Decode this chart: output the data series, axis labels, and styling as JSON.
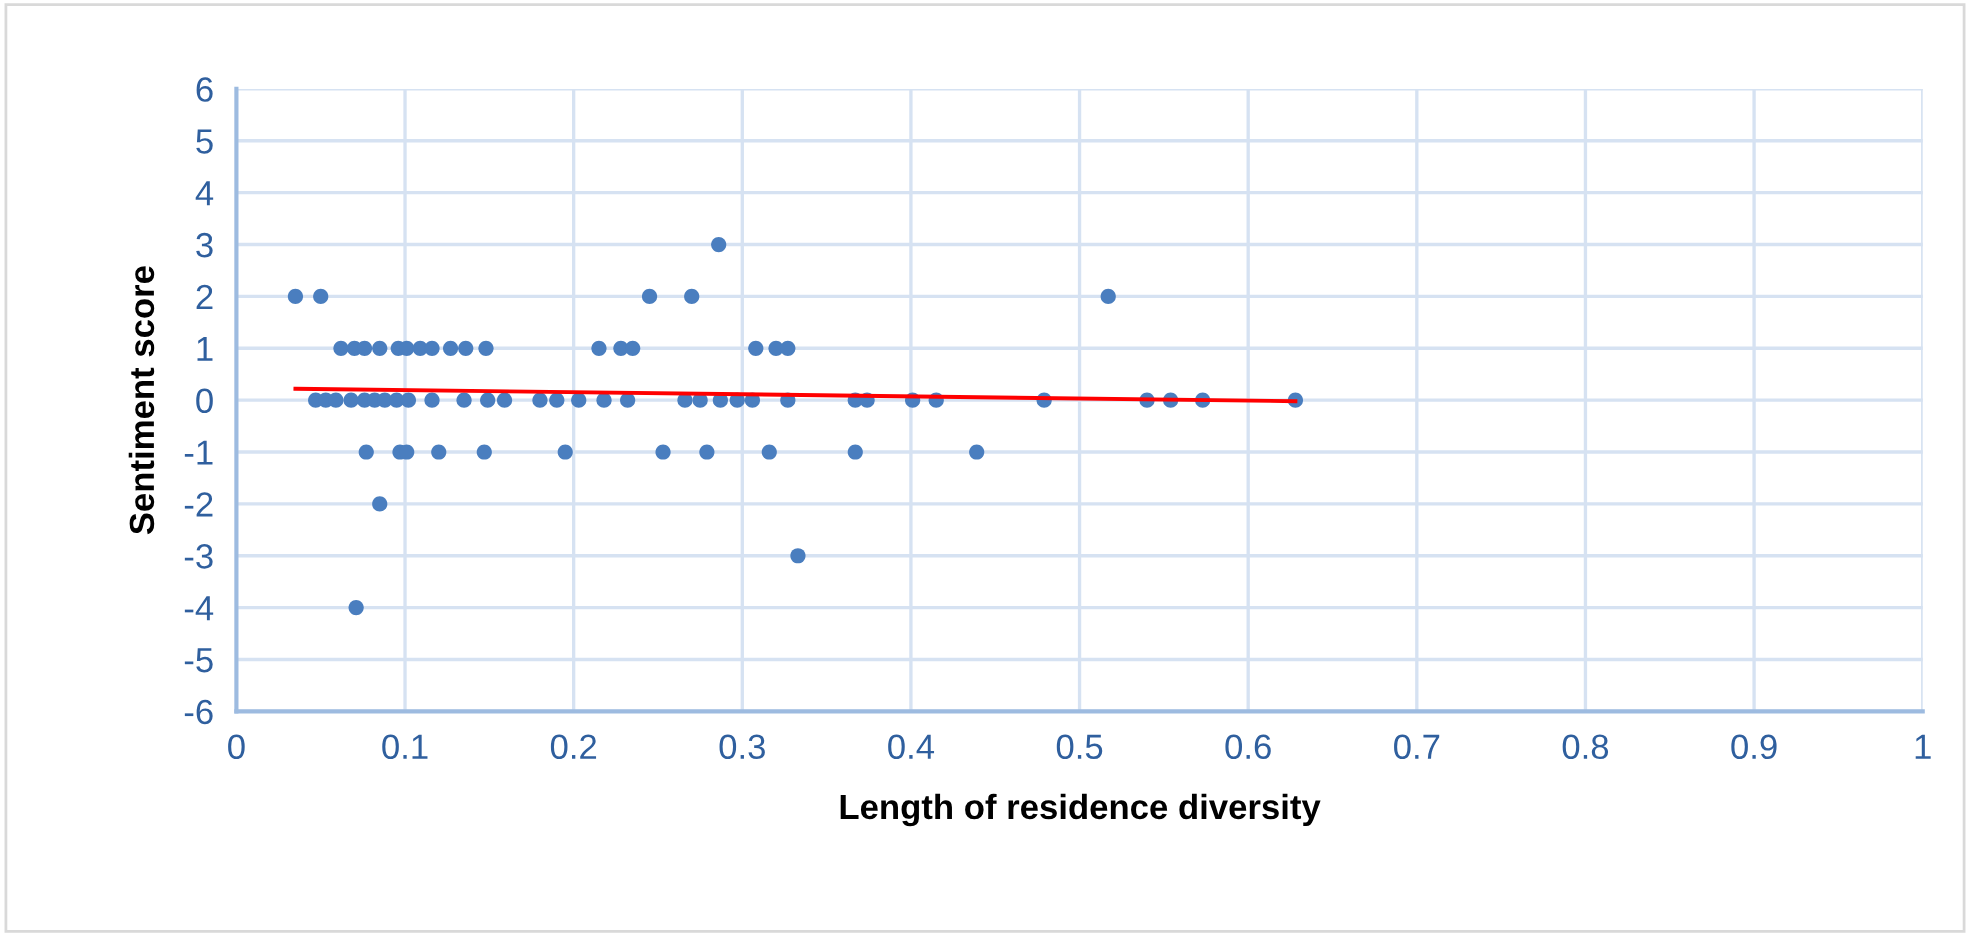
{
  "chart_data": {
    "type": "scatter",
    "xlabel": "Length of residence diversity",
    "ylabel": "Sentiment score",
    "xlim": [
      0,
      1
    ],
    "ylim": [
      -6,
      6
    ],
    "xticks": [
      0,
      0.1,
      0.2,
      0.3,
      0.4,
      0.5,
      0.6,
      0.7,
      0.8,
      0.9,
      1
    ],
    "yticks": [
      -6,
      -5,
      -4,
      -3,
      -2,
      -1,
      0,
      1,
      2,
      3,
      4,
      5,
      6
    ],
    "grid": true,
    "legend": false,
    "marker": "circle",
    "series": [
      {
        "color": "#4a7ebf",
        "x": [
          0.035,
          0.05,
          0.245,
          0.27,
          0.517,
          0.286,
          0.333,
          0.071,
          0.085,
          0.077,
          0.097,
          0.101,
          0.12,
          0.147,
          0.195,
          0.253,
          0.279,
          0.316,
          0.367,
          0.439,
          0.062,
          0.07,
          0.076,
          0.085,
          0.096,
          0.101,
          0.109,
          0.116,
          0.127,
          0.136,
          0.148,
          0.215,
          0.228,
          0.235,
          0.308,
          0.32,
          0.327,
          0.047,
          0.053,
          0.059,
          0.068,
          0.076,
          0.082,
          0.088,
          0.095,
          0.102,
          0.116,
          0.135,
          0.149,
          0.159,
          0.18,
          0.19,
          0.203,
          0.218,
          0.232,
          0.266,
          0.275,
          0.287,
          0.297,
          0.306,
          0.327,
          0.367,
          0.374,
          0.401,
          0.415,
          0.479,
          0.54,
          0.554,
          0.573,
          0.628
        ],
        "values": [
          2,
          2,
          2,
          2,
          2,
          3,
          -3,
          -4,
          -2,
          -1,
          -1,
          -1,
          -1,
          -1,
          -1,
          -1,
          -1,
          -1,
          -1,
          -1,
          1,
          1,
          1,
          1,
          1,
          1,
          1,
          1,
          1,
          1,
          1,
          1,
          1,
          1,
          1,
          1,
          1,
          0,
          0,
          0,
          0,
          0,
          0,
          0,
          0,
          0,
          0,
          0,
          0,
          0,
          0,
          0,
          0,
          0,
          0,
          0,
          0,
          0,
          0,
          0,
          0,
          0,
          0,
          0,
          0,
          0,
          0,
          0,
          0,
          0
        ]
      },
      {
        "type": "line",
        "color": "#ff0000",
        "marker": "none",
        "x": [
          0.035,
          0.628
        ],
        "values": [
          0.22,
          -0.02
        ]
      }
    ]
  }
}
